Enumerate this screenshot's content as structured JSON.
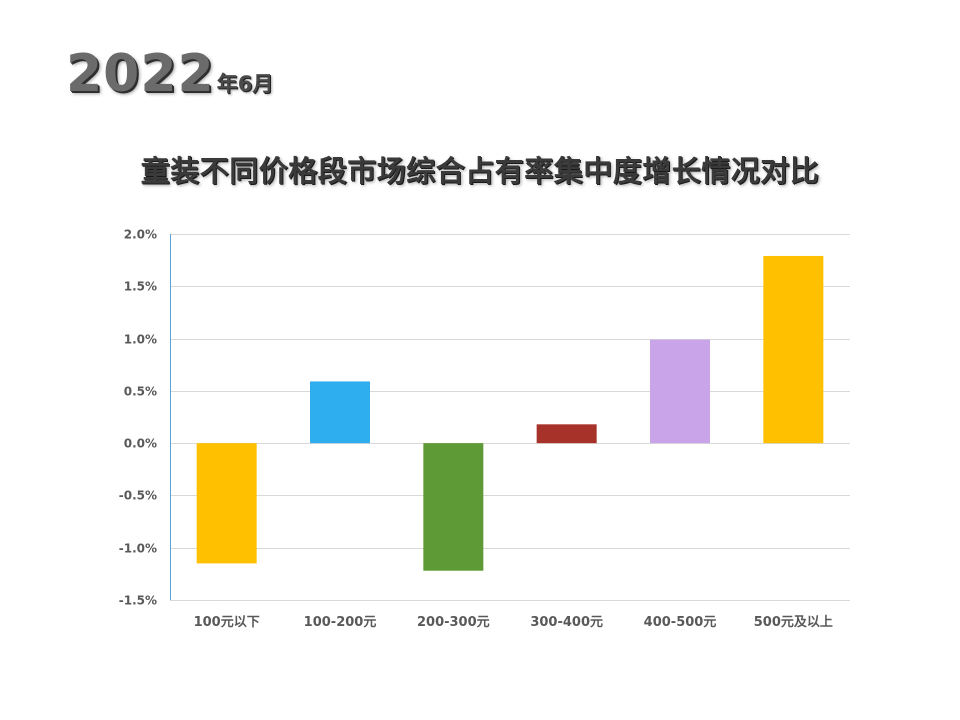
{
  "header": {
    "year": "2022",
    "month": "年6月"
  },
  "chart_data": {
    "type": "bar",
    "title": "童装不同价格段市场综合占有率集中度增长情况对比",
    "categories": [
      "100元以下",
      "100-200元",
      "200-300元",
      "300-400元",
      "400-500元",
      "500元及以上"
    ],
    "values": [
      -1.15,
      0.59,
      -1.22,
      0.18,
      0.99,
      1.79
    ],
    "value_unit": "%",
    "bar_colors": [
      "#FFC000",
      "#2EADEF",
      "#5E9A35",
      "#A6322A",
      "#C9A4E8",
      "#FFC000"
    ],
    "ylim": [
      -1.5,
      2.0
    ],
    "yticks": [
      "-1.5%",
      "-1.0%",
      "-0.5%",
      "0.0%",
      "0.5%",
      "1.0%",
      "1.5%",
      "2.0%"
    ],
    "ytick_values": [
      -1.5,
      -1.0,
      -0.5,
      0.0,
      0.5,
      1.0,
      1.5,
      2.0
    ],
    "xlabel": "",
    "ylabel": "",
    "grid": true,
    "legend": "none",
    "axis_color": "#5BA3D6",
    "grid_color": "#D9D9D9"
  }
}
